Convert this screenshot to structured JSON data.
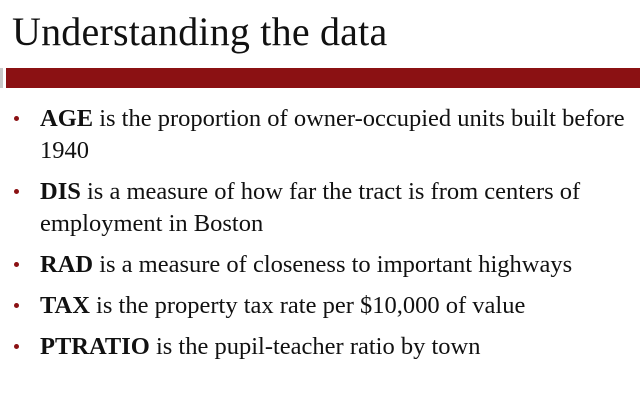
{
  "slide": {
    "title": "Understanding the data",
    "accent_color": "#8b1113",
    "bullets": [
      {
        "term": "AGE",
        "text": " is the proportion of owner-occupied units built before 1940"
      },
      {
        "term": "DIS",
        "text": " is a measure of how far the tract is from centers of employment in Boston"
      },
      {
        "term": "RAD",
        "text": " is a measure of closeness to important highways"
      },
      {
        "term": "TAX",
        "text": " is the property tax rate per $10,000 of value"
      },
      {
        "term": "PTRATIO",
        "text": " is the pupil-teacher ratio by town"
      }
    ]
  }
}
